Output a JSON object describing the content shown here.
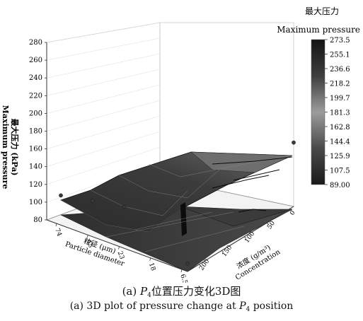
{
  "chart_data": {
    "type": "surface",
    "zlabel_zh": "最大压力 (kPa)",
    "zlabel_en": "Maximum pressure",
    "xlabel_zh": "粒径 (μm)",
    "xlabel_en": "Particle diameter",
    "ylabel_zh": "浓度 (g/m³)",
    "ylabel_en": "Concentration",
    "z_ticks": [
      "80",
      "100",
      "120",
      "140",
      "160",
      "180",
      "200",
      "220",
      "240",
      "260",
      "280"
    ],
    "zlim": [
      80,
      280
    ],
    "x_ticks": [
      "74",
      "45",
      "23",
      "18",
      "6.5"
    ],
    "y_ticks": [
      "0",
      "50",
      "100",
      "150",
      "200"
    ],
    "colorbar": {
      "title_zh": "最大压力",
      "title_en": "Maximum pressure",
      "ticks": [
        "273.5",
        "255.1",
        "236.6",
        "218.2",
        "199.7",
        "181.3",
        "162.8",
        "144.4",
        "125.9",
        "107.5",
        "89.00"
      ],
      "range": [
        89.0,
        273.5
      ]
    },
    "surface_points": [
      {
        "particle_diameter": "74",
        "concentration": 200,
        "pressure": 102
      },
      {
        "particle_diameter": "45",
        "concentration": 200,
        "pressure": 112
      },
      {
        "particle_diameter": "23",
        "concentration": 200,
        "pressure": 121
      },
      {
        "particle_diameter": "6.5",
        "concentration": 200,
        "pressure": 89
      },
      {
        "particle_diameter": "6.5",
        "concentration": 0,
        "pressure": 152
      }
    ]
  },
  "caption": {
    "zh_prefix": "(a) ",
    "zh_var": "P",
    "zh_sub": "4",
    "zh_suffix": "位置压力变化3D图",
    "en_prefix": "(a) 3D plot of pressure change at ",
    "en_var": "P",
    "en_sub": "4",
    "en_suffix": " position"
  },
  "colors": {
    "surface_dark": "#2b2b2b",
    "surface_mid": "#555555",
    "surface_light": "#9a9a9a",
    "axis": "#333333",
    "grid": "#c9c9c9"
  }
}
